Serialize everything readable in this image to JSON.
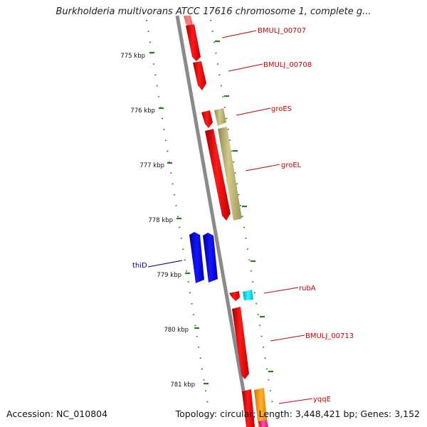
{
  "title": "Burkholderia multivorans ATCC 17616 chromosome 1, complete g...",
  "accession_text": "Accession: NC_010804",
  "topology_text": "Topology: circular; Length: 3,448,421 bp; Genes: 3,152",
  "colors": {
    "backbone": "#8a8a8a",
    "tick": "#2a7a1e",
    "kbp_label": "#111111",
    "label_red": "#cc0000",
    "label_blue": "#00008b",
    "gene_red": "#ee0000",
    "gene_khaki": "#bdb476",
    "gene_blue": "#0000ee",
    "gene_cyan": "#00e5ee",
    "gene_orange": "#ff9a00",
    "gene_pink": "#ff2d9a"
  },
  "kbp_labels": [
    "775 kbp",
    "776 kbp",
    "777 kbp",
    "778 kbp",
    "779 kbp",
    "780 kbp",
    "781 kbp"
  ],
  "gene_labels": [
    "BMULJ_00707",
    "BMULJ_00708",
    "groES",
    "groEL",
    "thiD",
    "rubA",
    "BMULJ_00713",
    "yqqE"
  ]
}
